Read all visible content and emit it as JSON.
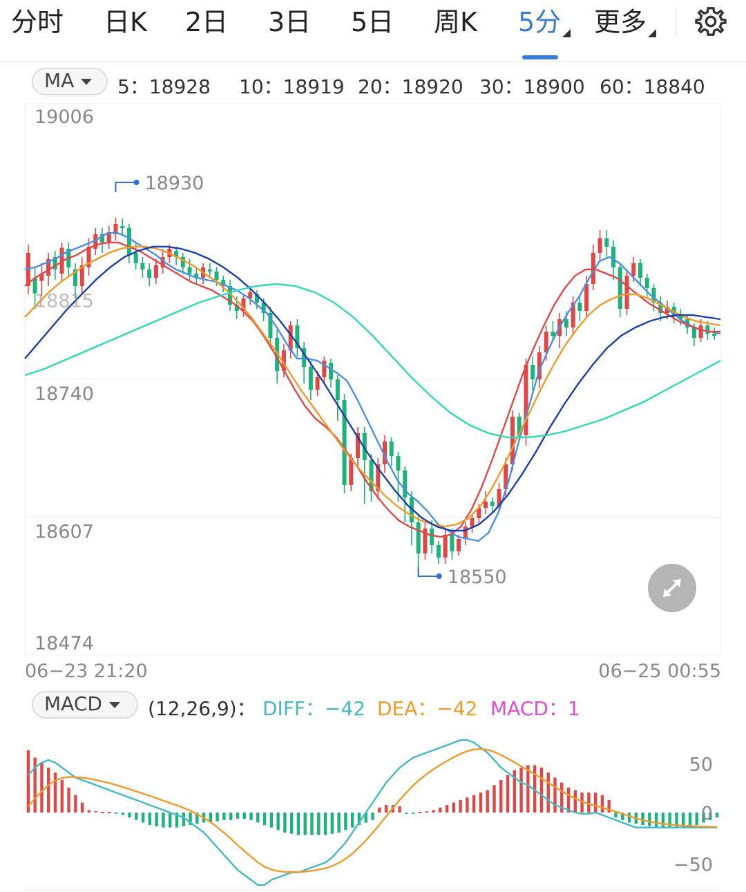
{
  "tabs": [
    {
      "label": "分时"
    },
    {
      "label": "日K"
    },
    {
      "label": "2日"
    },
    {
      "label": "3日"
    },
    {
      "label": "5日"
    },
    {
      "label": "周K"
    },
    {
      "label": "5分"
    },
    {
      "label": "更多"
    }
  ],
  "settings_icon": "gear-icon",
  "ma_bar": {
    "selector": "MA",
    "items": [
      {
        "text": "5：18928",
        "color": "#4a90e2"
      },
      {
        "text": "10：18919",
        "color": "#e04848"
      },
      {
        "text": "20：18920",
        "color": "#f09a2a"
      },
      {
        "text": "30：18900",
        "color": "#1a3fa8"
      },
      {
        "text": "60：18840",
        "color": "#2ed8b8"
      }
    ]
  },
  "macd_bar": {
    "selector": "MACD",
    "params": "(12,26,9)：",
    "diff": "DIFF：−42",
    "dea": "DEA：−42",
    "macd": "MACD：1",
    "colors": {
      "params": "#333",
      "diff": "#45b8c8",
      "dea": "#f09a2a",
      "macd": "#e04ad8"
    }
  },
  "x_labels": {
    "start": "06−23 21:20",
    "end": "06−25 00:55"
  },
  "expand_icon": "expand-icon",
  "chart_data": [
    {
      "type": "candlestick",
      "y_ticks": [
        "19006",
        "18740",
        "18607",
        "18474"
      ],
      "y_tick_values": [
        19006,
        18740,
        18607,
        18474
      ],
      "ylim": [
        18474,
        19006
      ],
      "annotations": [
        {
          "text": "18930",
          "value": 18930
        },
        {
          "text": "18550",
          "value": 18550
        }
      ],
      "partial_label": "18815",
      "colors": {
        "up": "#e04848",
        "down": "#1db37a"
      },
      "candles": [
        [
          18830,
          18862,
          18870,
          18822
        ],
        [
          18838,
          18823,
          18848,
          18808
        ],
        [
          18835,
          18842,
          18852,
          18820
        ],
        [
          18840,
          18856,
          18862,
          18830
        ],
        [
          18858,
          18846,
          18864,
          18836
        ],
        [
          18842,
          18867,
          18872,
          18834
        ],
        [
          18866,
          18848,
          18872,
          18838
        ],
        [
          18846,
          18830,
          18852,
          18818
        ],
        [
          18830,
          18850,
          18858,
          18822
        ],
        [
          18848,
          18868,
          18876,
          18840
        ],
        [
          18866,
          18880,
          18886,
          18860
        ],
        [
          18880,
          18872,
          18886,
          18862
        ],
        [
          18872,
          18882,
          18888,
          18866
        ],
        [
          18880,
          18890,
          18896,
          18874
        ],
        [
          18888,
          18886,
          18895,
          18878
        ],
        [
          18886,
          18860,
          18890,
          18852
        ],
        [
          18862,
          18852,
          18872,
          18846
        ],
        [
          18852,
          18846,
          18858,
          18838
        ],
        [
          18846,
          18838,
          18852,
          18830
        ],
        [
          18838,
          18850,
          18856,
          18832
        ],
        [
          18848,
          18858,
          18866,
          18842
        ],
        [
          18858,
          18866,
          18870,
          18852
        ],
        [
          18864,
          18858,
          18868,
          18850
        ],
        [
          18858,
          18848,
          18862,
          18842
        ],
        [
          18848,
          18842,
          18856,
          18836
        ],
        [
          18842,
          18838,
          18848,
          18832
        ],
        [
          18838,
          18848,
          18852,
          18832
        ],
        [
          18846,
          18844,
          18852,
          18838
        ],
        [
          18844,
          18836,
          18848,
          18830
        ],
        [
          18836,
          18830,
          18840,
          18824
        ],
        [
          18830,
          18812,
          18836,
          18806
        ],
        [
          18812,
          18806,
          18820,
          18798
        ],
        [
          18806,
          18818,
          18822,
          18800
        ],
        [
          18818,
          18824,
          18830,
          18812
        ],
        [
          18822,
          18814,
          18826,
          18808
        ],
        [
          18814,
          18804,
          18818,
          18796
        ],
        [
          18804,
          18780,
          18810,
          18770
        ],
        [
          18780,
          18748,
          18788,
          18736
        ],
        [
          18748,
          18768,
          18774,
          18742
        ],
        [
          18768,
          18792,
          18796,
          18760
        ],
        [
          18792,
          18770,
          18798,
          18762
        ],
        [
          18770,
          18752,
          18776,
          18736
        ],
        [
          18752,
          18730,
          18758,
          18720
        ],
        [
          18730,
          18742,
          18748,
          18724
        ],
        [
          18742,
          18758,
          18762,
          18736
        ],
        [
          18756,
          18740,
          18760,
          18732
        ],
        [
          18740,
          18720,
          18744,
          18700
        ],
        [
          18720,
          18638,
          18726,
          18630
        ],
        [
          18638,
          18664,
          18668,
          18632
        ],
        [
          18664,
          18688,
          18694,
          18656
        ],
        [
          18688,
          18662,
          18694,
          18620
        ],
        [
          18662,
          18632,
          18668,
          18622
        ],
        [
          18632,
          18658,
          18664,
          18624
        ],
        [
          18658,
          18680,
          18686,
          18650
        ],
        [
          18680,
          18666,
          18684,
          18656
        ],
        [
          18666,
          18652,
          18670,
          18622
        ],
        [
          18652,
          18626,
          18656,
          18602
        ],
        [
          18626,
          18602,
          18632,
          18580
        ],
        [
          18602,
          18572,
          18610,
          18550
        ],
        [
          18572,
          18596,
          18602,
          18566
        ],
        [
          18596,
          18580,
          18604,
          18572
        ],
        [
          18580,
          18568,
          18584,
          18562
        ],
        [
          18568,
          18590,
          18596,
          18562
        ],
        [
          18590,
          18574,
          18596,
          18566
        ],
        [
          18574,
          18586,
          18590,
          18570
        ],
        [
          18586,
          18598,
          18602,
          18580
        ],
        [
          18598,
          18606,
          18610,
          18592
        ],
        [
          18606,
          18616,
          18620,
          18600
        ],
        [
          18616,
          18622,
          18632,
          18610
        ],
        [
          18622,
          18618,
          18626,
          18612
        ],
        [
          18618,
          18634,
          18640,
          18614
        ],
        [
          18634,
          18658,
          18664,
          18628
        ],
        [
          18658,
          18704,
          18710,
          18652
        ],
        [
          18704,
          18686,
          18708,
          18680
        ],
        [
          18686,
          18754,
          18760,
          18676
        ],
        [
          18754,
          18740,
          18762,
          18728
        ],
        [
          18740,
          18766,
          18772,
          18732
        ],
        [
          18766,
          18786,
          18792,
          18758
        ],
        [
          18786,
          18782,
          18796,
          18776
        ],
        [
          18782,
          18798,
          18804,
          18770
        ],
        [
          18798,
          18790,
          18806,
          18782
        ],
        [
          18790,
          18814,
          18820,
          18784
        ],
        [
          18814,
          18806,
          18822,
          18796
        ],
        [
          18806,
          18832,
          18840,
          18800
        ],
        [
          18832,
          18862,
          18870,
          18826
        ],
        [
          18862,
          18876,
          18884,
          18854
        ],
        [
          18876,
          18868,
          18884,
          18858
        ],
        [
          18868,
          18848,
          18874,
          18836
        ],
        [
          18848,
          18808,
          18852,
          18800
        ],
        [
          18808,
          18840,
          18846,
          18802
        ],
        [
          18840,
          18852,
          18858,
          18834
        ],
        [
          18852,
          18838,
          18856,
          18830
        ],
        [
          18838,
          18828,
          18842,
          18820
        ],
        [
          18828,
          18814,
          18832,
          18806
        ],
        [
          18814,
          18804,
          18820,
          18796
        ],
        [
          18804,
          18810,
          18816,
          18798
        ],
        [
          18810,
          18802,
          18814,
          18794
        ],
        [
          18802,
          18798,
          18808,
          18792
        ],
        [
          18798,
          18790,
          18802,
          18784
        ],
        [
          18790,
          18780,
          18794,
          18772
        ],
        [
          18780,
          18792,
          18798,
          18776
        ],
        [
          18792,
          18784,
          18796,
          18778
        ],
        [
          18784,
          18782,
          18790,
          18778
        ]
      ],
      "ma_series": [
        {
          "name": "MA5",
          "color": "#4a90e2",
          "values": [
            18846,
            18848,
            18852,
            18856,
            18862,
            18866,
            18870,
            18874,
            18880,
            18882,
            18878,
            18872,
            18866,
            18860,
            18852,
            18846,
            18842,
            18838,
            18836,
            18834,
            18830,
            18826,
            18820,
            18812,
            18804,
            18790,
            18774,
            18760,
            18760,
            18758,
            18752,
            18746,
            18738,
            18720,
            18700,
            18680,
            18660,
            18642,
            18630,
            18622,
            18612,
            18600,
            18594,
            18588,
            18586,
            18584,
            18592,
            18612,
            18642,
            18680,
            18714,
            18748,
            18770,
            18790,
            18806,
            18820,
            18838,
            18854,
            18858,
            18852,
            18842,
            18832,
            18822,
            18814,
            18806,
            18798,
            18792,
            18788,
            18786,
            18784
          ]
        },
        {
          "name": "MA10",
          "color": "#e04848",
          "values": [
            18830,
            18838,
            18844,
            18850,
            18856,
            18860,
            18866,
            18870,
            18872,
            18872,
            18868,
            18864,
            18858,
            18852,
            18846,
            18840,
            18834,
            18830,
            18826,
            18820,
            18814,
            18806,
            18796,
            18782,
            18766,
            18748,
            18730,
            18714,
            18702,
            18694,
            18684,
            18670,
            18656,
            18640,
            18626,
            18614,
            18604,
            18598,
            18594,
            18590,
            18588,
            18590,
            18598,
            18614,
            18636,
            18662,
            18690,
            18718,
            18746,
            18770,
            18792,
            18812,
            18828,
            18840,
            18846,
            18846,
            18842,
            18838,
            18830,
            18822,
            18814,
            18808,
            18802,
            18796,
            18792,
            18788,
            18786,
            18786
          ]
        },
        {
          "name": "MA20",
          "color": "#f09a2a",
          "values": [
            18800,
            18812,
            18824,
            18834,
            18842,
            18850,
            18856,
            18862,
            18866,
            18868,
            18868,
            18866,
            18862,
            18856,
            18850,
            18842,
            18834,
            18824,
            18812,
            18798,
            18782,
            18766,
            18748,
            18730,
            18714,
            18698,
            18682,
            18666,
            18652,
            18640,
            18628,
            18618,
            18610,
            18604,
            18600,
            18598,
            18600,
            18606,
            18618,
            18636,
            18658,
            18682,
            18706,
            18730,
            18752,
            18772,
            18788,
            18802,
            18812,
            18818,
            18822,
            18822,
            18818,
            18812,
            18806,
            18800,
            18796,
            18794,
            18792
          ]
        },
        {
          "name": "MA30",
          "color": "#1a3fa8",
          "values": [
            18760,
            18776,
            18792,
            18808,
            18822,
            18836,
            18848,
            18858,
            18864,
            18868,
            18868,
            18866,
            18862,
            18856,
            18848,
            18838,
            18826,
            18812,
            18796,
            18778,
            18758,
            18738,
            18716,
            18694,
            18672,
            18652,
            18634,
            18618,
            18606,
            18598,
            18594,
            18594,
            18600,
            18612,
            18628,
            18648,
            18670,
            18694,
            18716,
            18736,
            18754,
            18770,
            18782,
            18790,
            18796,
            18800,
            18802,
            18802,
            18800,
            18798
          ]
        },
        {
          "name": "MA60",
          "color": "#2ed8b8",
          "values": [
            18744,
            18750,
            18758,
            18766,
            18774,
            18782,
            18790,
            18798,
            18806,
            18814,
            18820,
            18826,
            18830,
            18832,
            18830,
            18824,
            18814,
            18800,
            18782,
            18762,
            18742,
            18724,
            18708,
            18696,
            18688,
            18684,
            18684,
            18686,
            18690,
            18696,
            18702,
            18710,
            18718,
            18728,
            18738,
            18748,
            18758
          ]
        }
      ]
    },
    {
      "type": "macd",
      "y_ticks": [
        "50",
        "0",
        "−50"
      ],
      "y_tick_values": [
        50,
        0,
        -50
      ],
      "ylim": [
        -62,
        62
      ],
      "colors": {
        "pos": "#e04848",
        "neg": "#1db37a",
        "diff": "#45b8c8",
        "dea": "#f09a2a"
      },
      "hist": [
        50,
        44,
        40,
        36,
        32,
        26,
        20,
        14,
        8,
        2,
        1,
        0,
        0,
        -1,
        -2,
        -4,
        -6,
        -8,
        -10,
        -11,
        -12,
        -12,
        -12,
        -11,
        -10,
        -9,
        -8,
        -8,
        -7,
        -6,
        -6,
        -5,
        -5,
        -6,
        -8,
        -10,
        -12,
        -14,
        -16,
        -17,
        -18,
        -18,
        -18,
        -18,
        -18,
        -17,
        -16,
        -14,
        -12,
        -10,
        -8,
        -6,
        4,
        6,
        6,
        5,
        -1,
        -1,
        0,
        1,
        2,
        4,
        6,
        8,
        10,
        12,
        14,
        16,
        18,
        22,
        26,
        30,
        34,
        36,
        38,
        38,
        36,
        32,
        28,
        24,
        20,
        18,
        16,
        16,
        16,
        14,
        10,
        -4,
        -6,
        -8,
        -9,
        -10,
        -11,
        -12,
        -12,
        -12,
        -12,
        -12,
        -11,
        -10,
        -8,
        -6,
        -4
      ]
    }
  ]
}
